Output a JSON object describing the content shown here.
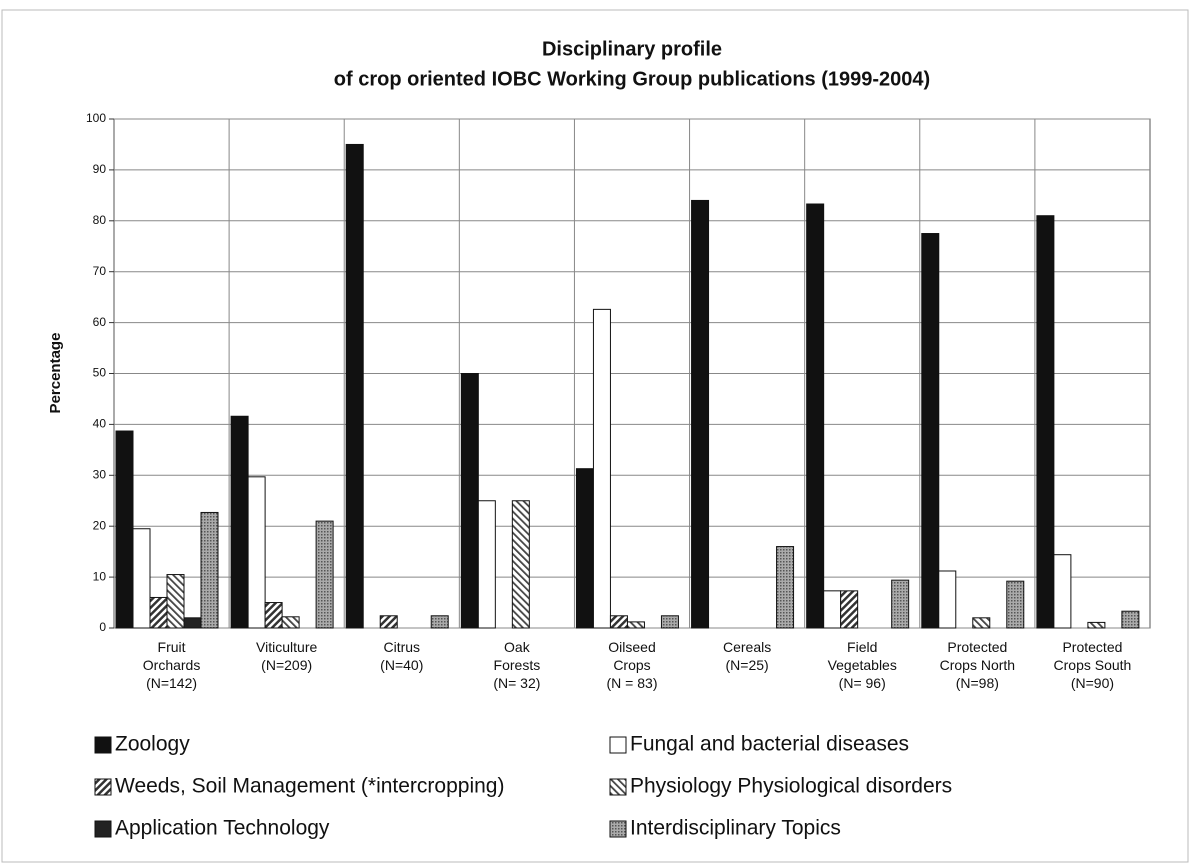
{
  "chart_data": {
    "type": "bar",
    "title": "Disciplinary profile",
    "subtitle": "of crop oriented IOBC Working Group publications (1999-2004)",
    "y_label": "Percentage",
    "categories": [
      "Fruit\nOrchards\n(N=142)",
      "Viticulture\n(N=209)",
      "Citrus\n(N=40)",
      "Oak\nForests\n(N= 32)",
      "Oilseed\nCrops\n(N = 83)",
      "Cereals\n(N=25)",
      "Field\nVegetables\n(N= 96)",
      "Protected\nCrops North\n(N=98)",
      "Protected\nCrops South\n(N=90)"
    ],
    "series": [
      {
        "name": "Zoology",
        "color": "#111111",
        "pattern": "solid",
        "values": [
          38.7,
          41.6,
          95,
          50,
          31.3,
          84,
          83.3,
          77.5,
          81
        ]
      },
      {
        "name": "Fungal and bacterial diseases",
        "color": "#ffffff",
        "pattern": "solid",
        "values": [
          19.5,
          29.7,
          0,
          25,
          62.6,
          0,
          7.3,
          11.2,
          14.4
        ]
      },
      {
        "name": "Weeds, Soil Management (*intercropping)",
        "color": "#333333",
        "pattern": "diagonal",
        "values": [
          6,
          5,
          2.4,
          0,
          2.4,
          0,
          7.3,
          0,
          0
        ]
      },
      {
        "name": "Physiology Physiological disorders",
        "color": "#444444",
        "pattern": "diagonal-reverse",
        "values": [
          10.5,
          2.2,
          0,
          25,
          1.2,
          0,
          0,
          2,
          1.1
        ]
      },
      {
        "name": "Application Technology",
        "color": "#222222",
        "pattern": "solid",
        "values": [
          2,
          0,
          0,
          0,
          0,
          0,
          0,
          0,
          0
        ]
      },
      {
        "name": "Interdisciplinary Topics",
        "color": "#777777",
        "pattern": "dots",
        "values": [
          22.7,
          21,
          2.4,
          0,
          2.4,
          16,
          9.4,
          9.2,
          3.3
        ]
      }
    ],
    "ylim": [
      0,
      100
    ],
    "yticks": [
      0,
      10,
      20,
      30,
      40,
      50,
      60,
      70,
      80,
      90,
      100
    ],
    "grid": true
  }
}
